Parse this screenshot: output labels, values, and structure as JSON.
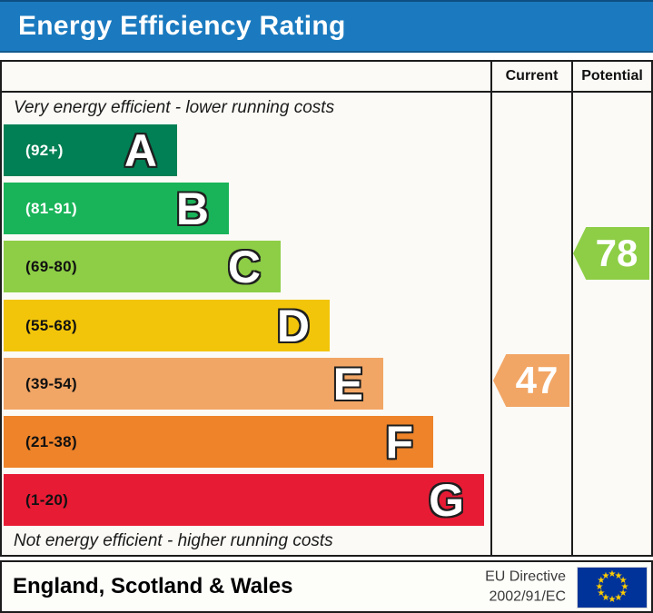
{
  "title": "Energy Efficiency Rating",
  "columns": {
    "current": "Current",
    "potential": "Potential"
  },
  "captions": {
    "top": "Very energy efficient - lower running costs",
    "bottom": "Not energy efficient - higher running costs"
  },
  "bands": [
    {
      "letter": "A",
      "range": "(92+)",
      "color": "#008054",
      "text_color": "#ffffff"
    },
    {
      "letter": "B",
      "range": "(81-91)",
      "color": "#19b459",
      "text_color": "#ffffff"
    },
    {
      "letter": "C",
      "range": "(69-80)",
      "color": "#8dce46",
      "text_color": "#111111"
    },
    {
      "letter": "D",
      "range": "(55-68)",
      "color": "#f2c50a",
      "text_color": "#111111"
    },
    {
      "letter": "E",
      "range": "(39-54)",
      "color": "#f2a665",
      "text_color": "#111111"
    },
    {
      "letter": "F",
      "range": "(21-38)",
      "color": "#ee8329",
      "text_color": "#111111"
    },
    {
      "letter": "G",
      "range": "(1-20)",
      "color": "#e81b35",
      "text_color": "#111111"
    }
  ],
  "ratings": {
    "current": {
      "value": "47",
      "band": "E",
      "color": "#f2a665"
    },
    "potential": {
      "value": "78",
      "band": "C",
      "color": "#8dce46"
    }
  },
  "footer": {
    "region": "England, Scotland & Wales",
    "directive_line1": "EU Directive",
    "directive_line2": "2002/91/EC"
  },
  "colors": {
    "banner": "#1b7abf",
    "border": "#1c1c1c",
    "flag_blue": "#003399",
    "flag_star": "#ffcc00"
  },
  "chart_data": {
    "type": "bar",
    "title": "Energy Efficiency Rating",
    "categories": [
      "A",
      "B",
      "C",
      "D",
      "E",
      "F",
      "G"
    ],
    "band_ranges": [
      "92+",
      "81-91",
      "69-80",
      "55-68",
      "39-54",
      "21-38",
      "1-20"
    ],
    "band_colors": [
      "#008054",
      "#19b459",
      "#8dce46",
      "#f2c50a",
      "#f2a665",
      "#ee8329",
      "#e81b35"
    ],
    "series": [
      {
        "name": "Current",
        "value": 47,
        "band": "E"
      },
      {
        "name": "Potential",
        "value": 78,
        "band": "C"
      }
    ],
    "annotations": [
      "Very energy efficient - lower running costs",
      "Not energy efficient - higher running costs"
    ],
    "region": "England, Scotland & Wales",
    "directive": "EU Directive 2002/91/EC",
    "value_scale": [
      1,
      100
    ]
  }
}
